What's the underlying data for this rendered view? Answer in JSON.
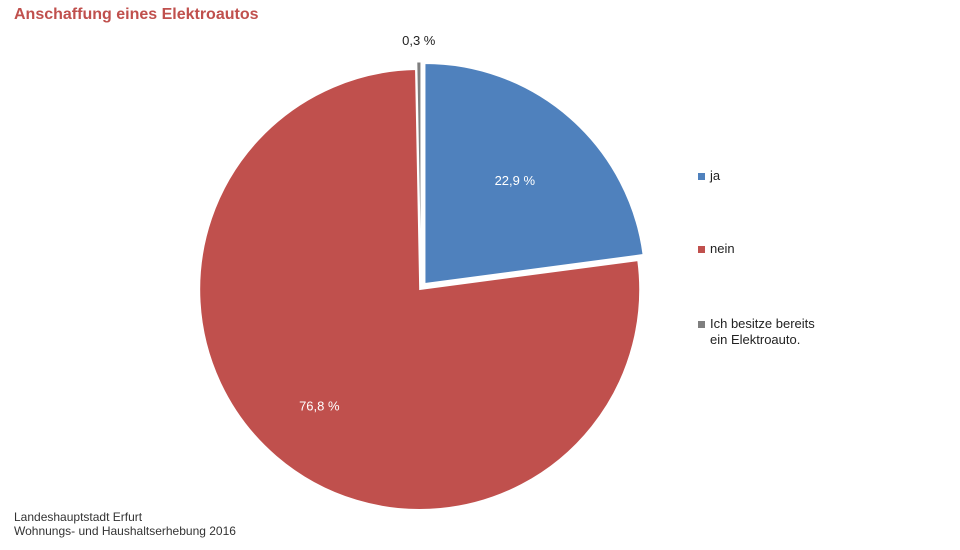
{
  "chart_data": {
    "type": "pie",
    "title": "Anschaffung eines Elektroautos",
    "categories": [
      "ja",
      "nein",
      "Ich besitze bereits ein Elektroauto."
    ],
    "values": [
      22.9,
      76.8,
      0.3
    ],
    "value_labels": [
      "22,9 %",
      "76,8 %",
      "0,3 %"
    ],
    "colors": [
      "#4f81bd",
      "#c0504d",
      "#7f7f7f"
    ],
    "legend_position": "right",
    "exploded": true
  },
  "legend": {
    "items": [
      {
        "lines": [
          "ja"
        ]
      },
      {
        "lines": [
          "nein"
        ]
      },
      {
        "lines": [
          "Ich besitze bereits",
          "ein Elektroauto."
        ]
      }
    ]
  },
  "source": {
    "line1": "Landeshauptstadt  Erfurt",
    "line2": "Wohnungs- und Haushaltserhebung 2016"
  }
}
